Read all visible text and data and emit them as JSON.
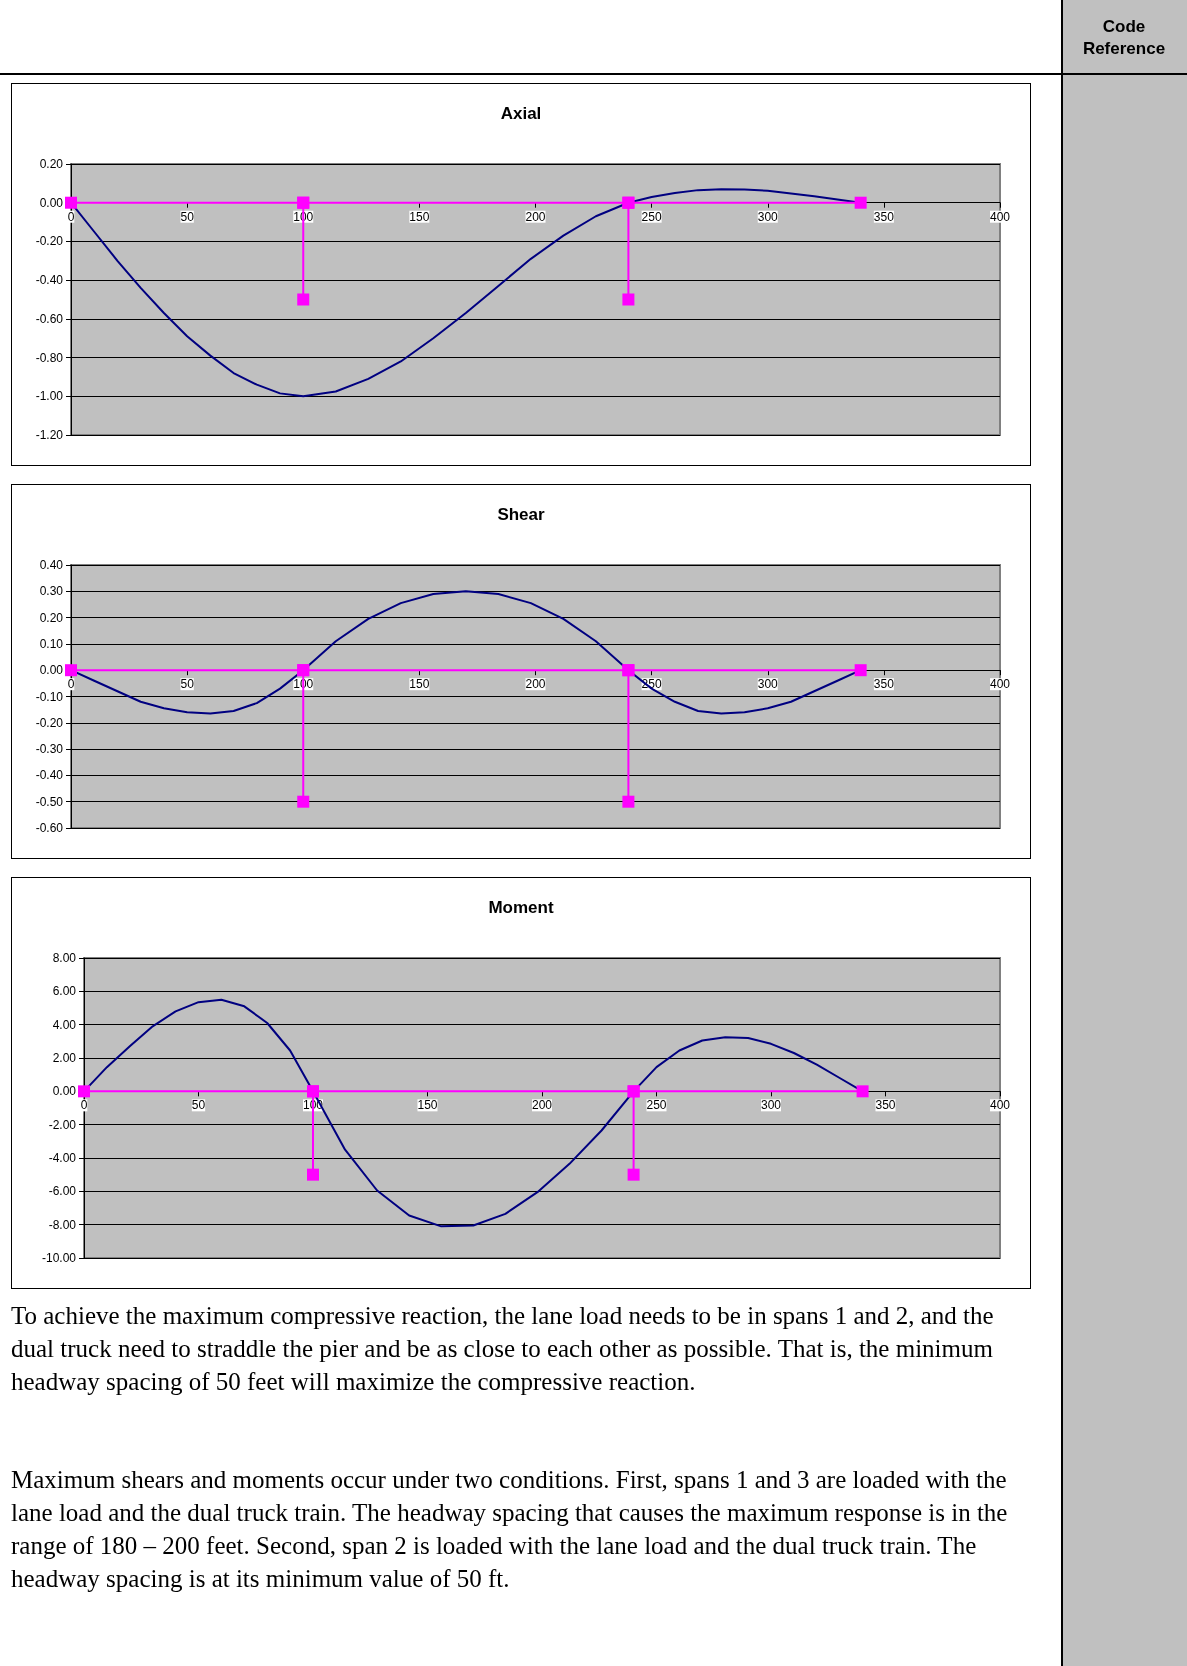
{
  "chart_data": [
    {
      "type": "line",
      "title": "Axial",
      "xlim": [
        0,
        400
      ],
      "xticks": [
        0,
        50,
        100,
        150,
        200,
        250,
        300,
        350,
        400
      ],
      "ylim": [
        -1.2,
        0.2
      ],
      "yticks": [
        {
          "value": -1.2,
          "label": "-1.20"
        },
        {
          "value": -1,
          "label": "-1.00"
        },
        {
          "value": -0.8,
          "label": "-0.80"
        },
        {
          "value": -0.6,
          "label": "-0.60"
        },
        {
          "value": -0.4,
          "label": "-0.40"
        },
        {
          "value": -0.2,
          "label": "-0.20"
        },
        {
          "value": 0,
          "label": "0.00"
        },
        {
          "value": 0.2,
          "label": "0.20"
        }
      ],
      "grid": "y",
      "series": [
        {
          "color": "#000080",
          "marker": "none",
          "x": [
            0,
            10,
            20,
            30,
            40,
            50,
            60,
            70,
            80,
            90,
            100,
            114,
            128,
            142,
            156,
            170,
            184,
            198,
            212,
            226,
            240,
            250,
            260,
            270,
            280,
            290,
            300,
            310,
            320,
            330,
            340
          ],
          "values": [
            0,
            -0.15,
            -0.3,
            -0.44,
            -0.57,
            -0.69,
            -0.79,
            -0.88,
            -0.94,
            -0.985,
            -1.0,
            -0.975,
            -0.91,
            -0.82,
            -0.7,
            -0.57,
            -0.43,
            -0.29,
            -0.17,
            -0.07,
            0,
            0.03,
            0.05,
            0.065,
            0.07,
            0.068,
            0.062,
            0.048,
            0.033,
            0.017,
            0
          ]
        },
        {
          "color": "#ff00ff",
          "marker": "square",
          "x": [
            0,
            100,
            100,
            100,
            240,
            240,
            240,
            340
          ],
          "values": [
            0,
            0,
            -0.5,
            0,
            0,
            -0.5,
            0,
            0
          ]
        }
      ]
    },
    {
      "type": "line",
      "title": "Shear",
      "xlim": [
        0,
        400
      ],
      "xticks": [
        0,
        50,
        100,
        150,
        200,
        250,
        300,
        350,
        400
      ],
      "ylim": [
        -0.6,
        0.4
      ],
      "yticks": [
        {
          "value": -0.6,
          "label": "-0.60"
        },
        {
          "value": -0.5,
          "label": "-0.50"
        },
        {
          "value": -0.4,
          "label": "-0.40"
        },
        {
          "value": -0.3,
          "label": "-0.30"
        },
        {
          "value": -0.2,
          "label": "-0.20"
        },
        {
          "value": -0.1,
          "label": "-0.10"
        },
        {
          "value": 0,
          "label": "0.00"
        },
        {
          "value": 0.1,
          "label": "0.10"
        },
        {
          "value": 0.2,
          "label": "0.20"
        },
        {
          "value": 0.3,
          "label": "0.30"
        },
        {
          "value": 0.4,
          "label": "0.40"
        }
      ],
      "grid": "y",
      "series": [
        {
          "color": "#000080",
          "marker": "none",
          "x": [
            0,
            10,
            20,
            30,
            40,
            50,
            60,
            70,
            80,
            90,
            100,
            114,
            128,
            142,
            156,
            170,
            184,
            198,
            212,
            226,
            240,
            250,
            260,
            270,
            280,
            290,
            300,
            310,
            320,
            330,
            340
          ],
          "values": [
            0,
            -0.04,
            -0.08,
            -0.12,
            -0.145,
            -0.16,
            -0.165,
            -0.155,
            -0.125,
            -0.07,
            0,
            0.11,
            0.195,
            0.255,
            0.29,
            0.3,
            0.29,
            0.255,
            0.195,
            0.11,
            0,
            -0.07,
            -0.12,
            -0.155,
            -0.165,
            -0.16,
            -0.145,
            -0.12,
            -0.08,
            -0.04,
            0
          ]
        },
        {
          "color": "#ff00ff",
          "marker": "square",
          "x": [
            0,
            100,
            100,
            100,
            240,
            240,
            240,
            340
          ],
          "values": [
            0,
            0,
            -0.5,
            0,
            0,
            -0.5,
            0,
            0
          ]
        }
      ]
    },
    {
      "type": "line",
      "title": "Moment",
      "xlim": [
        0,
        400
      ],
      "xticks": [
        0,
        50,
        100,
        150,
        200,
        250,
        300,
        350,
        400
      ],
      "ylim": [
        -10,
        8
      ],
      "yticks": [
        {
          "value": -10,
          "label": "-10.00"
        },
        {
          "value": -8,
          "label": "-8.00"
        },
        {
          "value": -6,
          "label": "-6.00"
        },
        {
          "value": -4,
          "label": "-4.00"
        },
        {
          "value": -2,
          "label": "-2.00"
        },
        {
          "value": 0,
          "label": "0.00"
        },
        {
          "value": 2,
          "label": "2.00"
        },
        {
          "value": 4,
          "label": "4.00"
        },
        {
          "value": 6,
          "label": "6.00"
        },
        {
          "value": 8,
          "label": "8.00"
        }
      ],
      "grid": "y",
      "series": [
        {
          "color": "#000080",
          "marker": "none",
          "x": [
            0,
            10,
            20,
            30,
            40,
            50,
            60,
            70,
            80,
            90,
            100,
            114,
            128,
            142,
            156,
            170,
            184,
            198,
            212,
            226,
            240,
            250,
            260,
            270,
            280,
            290,
            300,
            310,
            320,
            330,
            340
          ],
          "values": [
            0,
            1.45,
            2.7,
            3.9,
            4.8,
            5.35,
            5.5,
            5.1,
            4.1,
            2.45,
            0,
            -3.5,
            -5.95,
            -7.45,
            -8.1,
            -8.05,
            -7.35,
            -6.05,
            -4.35,
            -2.35,
            0,
            1.45,
            2.45,
            3.05,
            3.25,
            3.2,
            2.85,
            2.3,
            1.6,
            0.8,
            0
          ]
        },
        {
          "color": "#ff00ff",
          "marker": "square",
          "x": [
            0,
            100,
            100,
            100,
            240,
            240,
            240,
            340
          ],
          "values": [
            0,
            0,
            -5,
            0,
            0,
            -5,
            0,
            0
          ]
        }
      ]
    },
    {
      "type": "other",
      "annotations": [
        "Code Reference",
        "To achieve the maximum compressive reaction, the lane load needs to be in spans 1 and 2, and the dual truck need to straddle the pier and be as close to each other as possible. That is, the minimum headway spacing of 50 feet will maximize the compressive reaction.",
        "Maximum shears and moments occur under two conditions. First, spans 1 and 3 are loaded with the lane load and the dual truck train. The headway spacing that causes the maximum response is in the range of 180 – 200 feet. Second, span 2 is loaded with the lane load and the dual truck train. The headway spacing is at its minimum value of 50 ft."
      ]
    }
  ]
}
